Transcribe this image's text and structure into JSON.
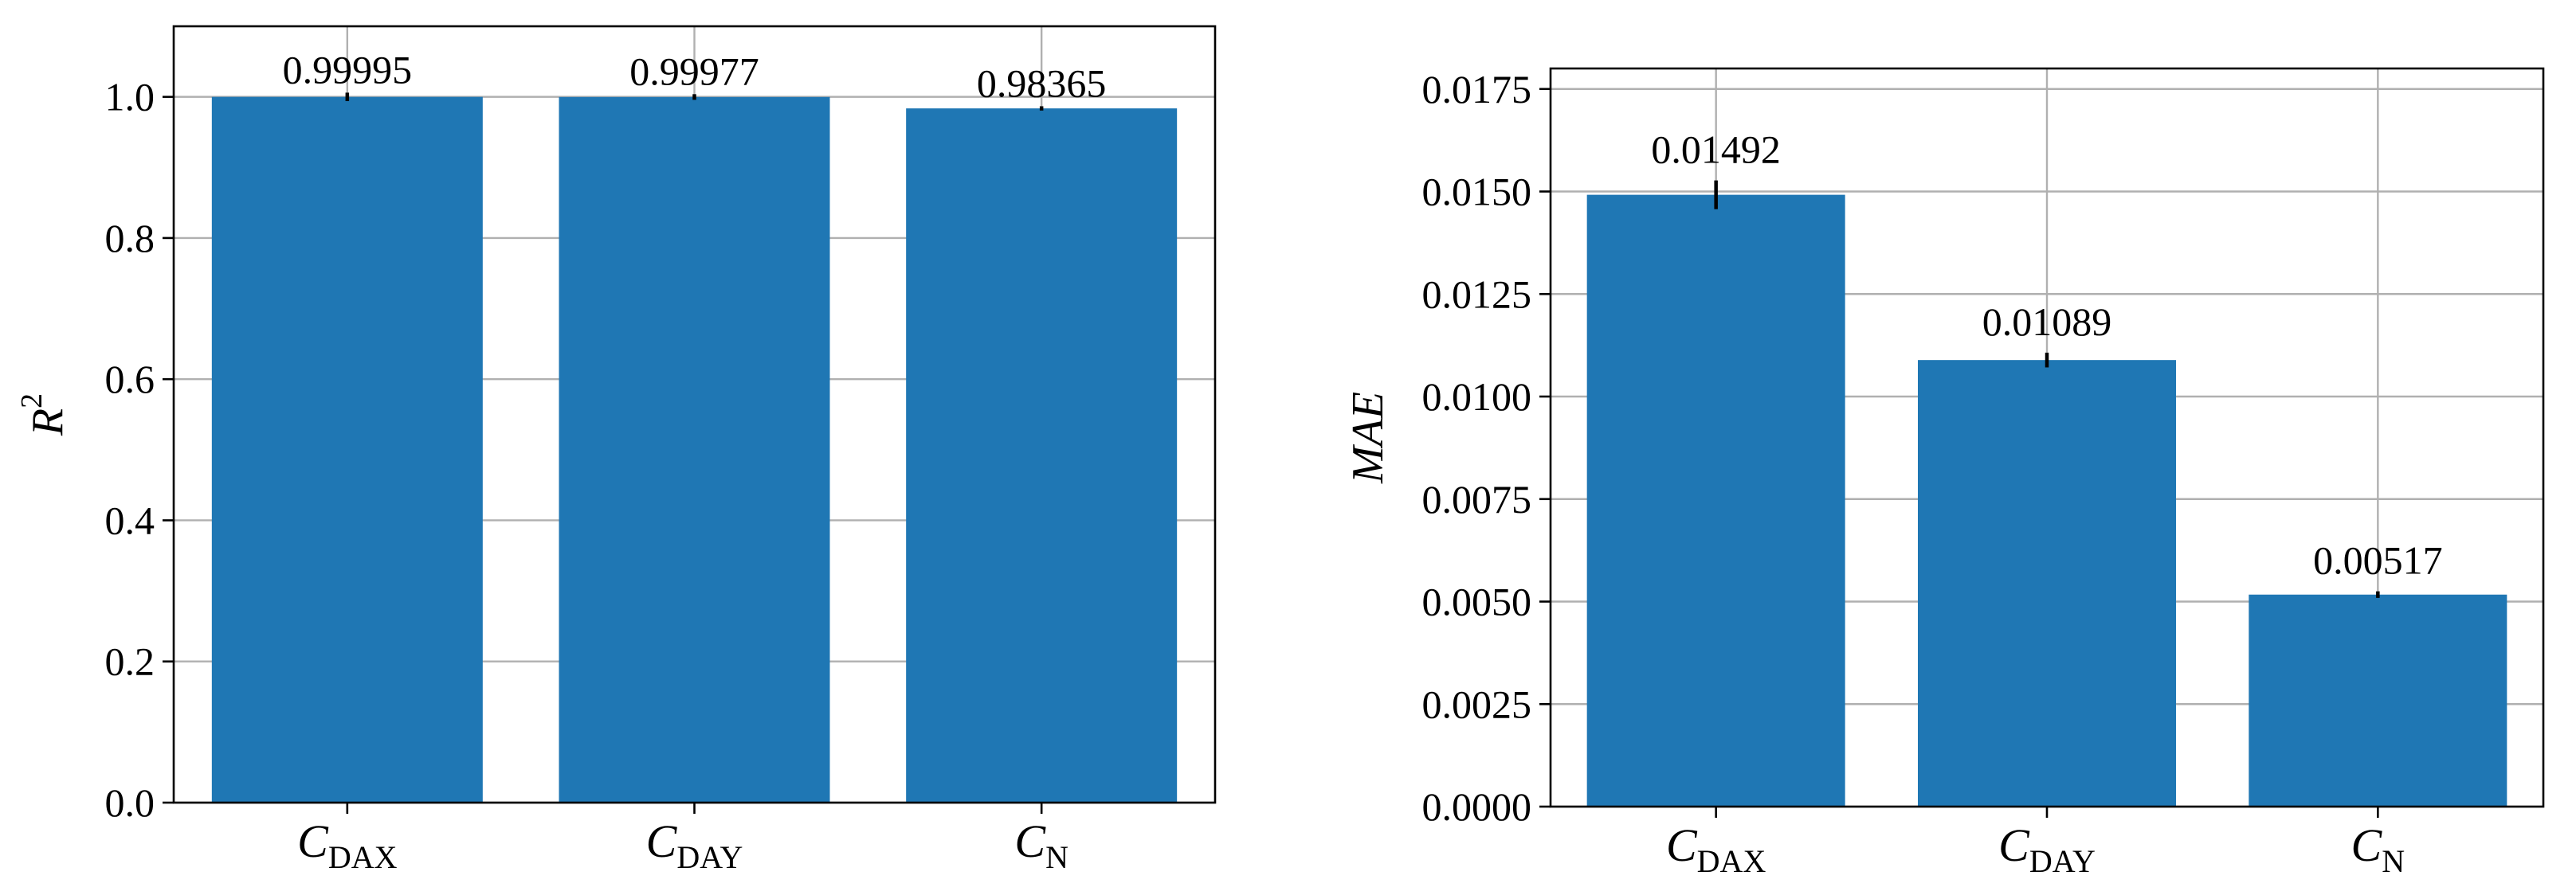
{
  "colors": {
    "bar": "#1f77b4",
    "grid": "#b0b0b0",
    "axis": "#000000",
    "errorbar": "#000000"
  },
  "chart_data": [
    {
      "type": "bar",
      "ylabel": {
        "base": "R",
        "sup": "2"
      },
      "ylim": [
        0,
        1.1
      ],
      "yticks": [
        "0.0",
        "0.2",
        "0.4",
        "0.6",
        "0.8",
        "1.0"
      ],
      "grid": true,
      "legend": "none",
      "categories": [
        {
          "main": "C",
          "sub": "DAX"
        },
        {
          "main": "C",
          "sub": "DAY"
        },
        {
          "main": "C",
          "sub": "N"
        }
      ],
      "values": [
        0.99995,
        0.99977,
        0.98365
      ],
      "errors": [
        0.006,
        0.004,
        0.003
      ],
      "data_labels": [
        "0.99995",
        "0.99977",
        "0.98365"
      ]
    },
    {
      "type": "bar",
      "ylabel": {
        "base": "MAE",
        "italic": true
      },
      "ylim": [
        0,
        0.018
      ],
      "yticks": [
        "0.0000",
        "0.0025",
        "0.0050",
        "0.0075",
        "0.0100",
        "0.0125",
        "0.0150",
        "0.0175"
      ],
      "grid": true,
      "legend": "none",
      "categories": [
        {
          "main": "C",
          "sub": "DAX"
        },
        {
          "main": "C",
          "sub": "DAY"
        },
        {
          "main": "C",
          "sub": "N"
        }
      ],
      "values": [
        0.01492,
        0.01089,
        0.00517
      ],
      "errors": [
        0.00035,
        0.00018,
        8e-05
      ],
      "data_labels": [
        "0.01492",
        "0.01089",
        "0.00517"
      ]
    }
  ]
}
